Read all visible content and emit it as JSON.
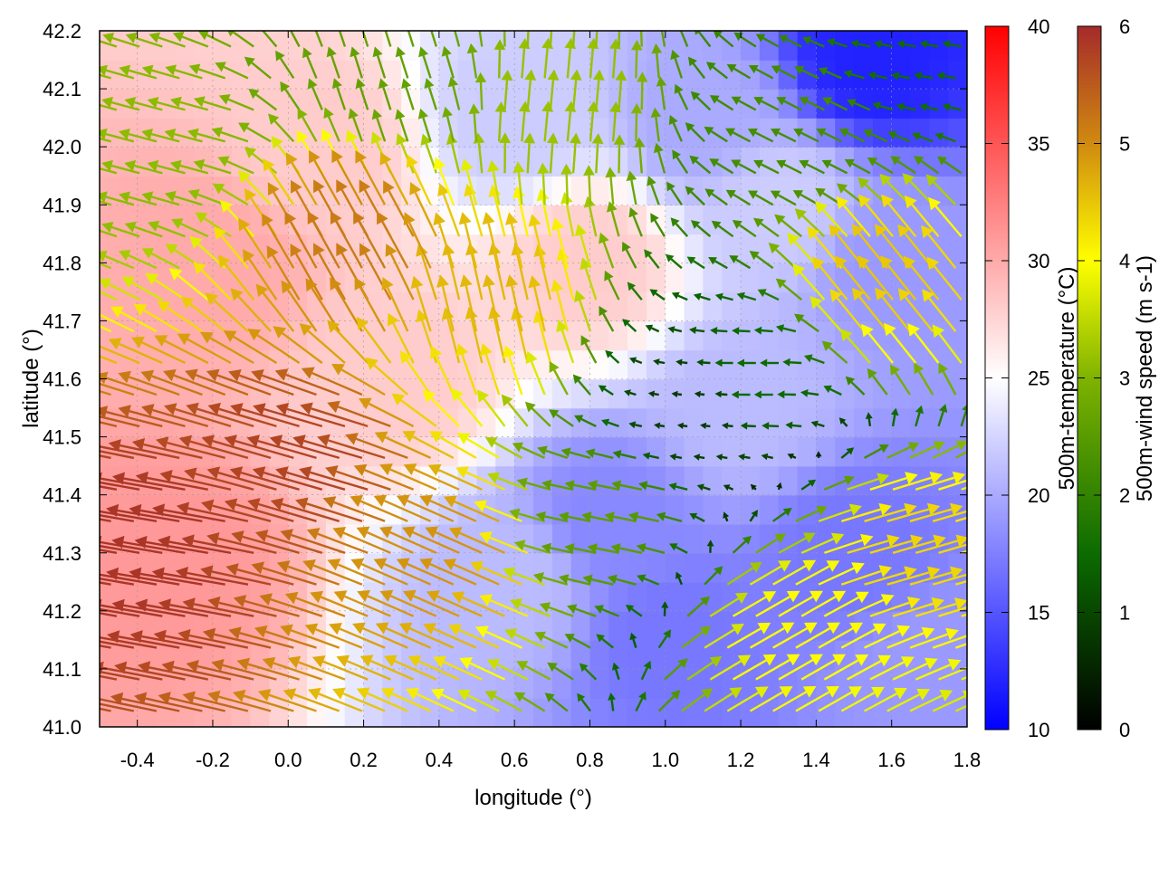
{
  "chart_data": {
    "type": "vector-field-heatmap",
    "xlabel": "longitude (°)",
    "ylabel": "latitude (°)",
    "xlim": [
      -0.5,
      1.8
    ],
    "ylim": [
      41.0,
      42.2
    ],
    "x_ticks": [
      "-0.4",
      "-0.2",
      "0.0",
      "0.2",
      "0.4",
      "0.6",
      "0.8",
      "1.0",
      "1.2",
      "1.4",
      "1.6",
      "1.8"
    ],
    "x_tick_values": [
      -0.4,
      -0.2,
      0.0,
      0.2,
      0.4,
      0.6,
      0.8,
      1.0,
      1.2,
      1.4,
      1.6,
      1.8
    ],
    "y_ticks": [
      "41.0",
      "41.1",
      "41.2",
      "41.3",
      "41.4",
      "41.5",
      "41.6",
      "41.7",
      "41.8",
      "41.9",
      "42.0",
      "42.1",
      "42.2"
    ],
    "y_tick_values": [
      41.0,
      41.1,
      41.2,
      41.3,
      41.4,
      41.5,
      41.6,
      41.7,
      41.8,
      41.9,
      42.0,
      42.1,
      42.2
    ],
    "grid": true,
    "temperature_colorbar": {
      "label": "500m-temperature (°C)",
      "range": [
        10,
        40
      ],
      "ticks": [
        "10",
        "15",
        "20",
        "25",
        "30",
        "35",
        "40"
      ],
      "tick_values": [
        10,
        15,
        20,
        25,
        30,
        35,
        40
      ],
      "colors": [
        "#0000ff",
        "#ffffff",
        "#ff0000"
      ],
      "color_stops": [
        10,
        25,
        40
      ]
    },
    "wind_colorbar": {
      "label": "500m-wind speed (m s-1)",
      "range": [
        0,
        6
      ],
      "ticks": [
        "0",
        "1",
        "2",
        "3",
        "4",
        "5",
        "6"
      ],
      "tick_values": [
        0,
        1,
        2,
        3,
        4,
        5,
        6
      ],
      "colors": [
        "#000000",
        "#0c6b00",
        "#7fb300",
        "#ffff00",
        "#d08a10",
        "#a52a2a"
      ],
      "color_stops": [
        0,
        1.5,
        3,
        4,
        5,
        6
      ]
    },
    "temperature_regions": [
      {
        "lon": -0.3,
        "lat": 41.3,
        "temp": 31
      },
      {
        "lon": -0.2,
        "lat": 41.8,
        "temp": 30
      },
      {
        "lon": 0.1,
        "lat": 42.0,
        "temp": 28
      },
      {
        "lon": 0.3,
        "lat": 41.6,
        "temp": 28
      },
      {
        "lon": 0.8,
        "lat": 41.8,
        "temp": 28
      },
      {
        "lon": 0.6,
        "lat": 41.25,
        "temp": 21
      },
      {
        "lon": 0.85,
        "lat": 41.35,
        "temp": 18
      },
      {
        "lon": 1.0,
        "lat": 41.15,
        "temp": 17
      },
      {
        "lon": 1.2,
        "lat": 41.55,
        "temp": 21
      },
      {
        "lon": 1.5,
        "lat": 41.3,
        "temp": 17
      },
      {
        "lon": 1.55,
        "lat": 42.15,
        "temp": 12
      },
      {
        "lon": 1.6,
        "lat": 41.8,
        "temp": 19
      },
      {
        "lon": 1.7,
        "lat": 41.1,
        "temp": 19
      },
      {
        "lon": 1.1,
        "lat": 42.05,
        "temp": 20
      },
      {
        "lon": 0.6,
        "lat": 42.05,
        "temp": 22
      },
      {
        "lon": 1.3,
        "lat": 41.9,
        "temp": 22
      }
    ],
    "wind_regions": [
      {
        "lon": -0.3,
        "lat": 41.3,
        "u": -5.8,
        "v": 1.0
      },
      {
        "lon": 0.1,
        "lat": 41.45,
        "u": -5.5,
        "v": 1.6
      },
      {
        "lon": 0.45,
        "lat": 41.3,
        "u": -4.5,
        "v": 2.0
      },
      {
        "lon": 0.55,
        "lat": 41.7,
        "u": -1.0,
        "v": 4.5
      },
      {
        "lon": 0.2,
        "lat": 41.8,
        "u": -2.5,
        "v": 4.5
      },
      {
        "lon": -0.3,
        "lat": 42.0,
        "u": -3.0,
        "v": 0.8
      },
      {
        "lon": 0.3,
        "lat": 42.1,
        "u": -0.8,
        "v": 2.5
      },
      {
        "lon": 0.7,
        "lat": 42.05,
        "u": 0.3,
        "v": 3.2
      },
      {
        "lon": 1.1,
        "lat": 41.55,
        "u": -0.8,
        "v": 0.1
      },
      {
        "lon": 1.25,
        "lat": 41.6,
        "u": -1.5,
        "v": 0.0
      },
      {
        "lon": 0.85,
        "lat": 41.35,
        "u": -2.5,
        "v": 0.5
      },
      {
        "lon": 1.3,
        "lat": 41.15,
        "u": 3.5,
        "v": 2.0
      },
      {
        "lon": 1.6,
        "lat": 41.3,
        "u": 4.2,
        "v": 1.2
      },
      {
        "lon": 1.6,
        "lat": 41.75,
        "u": -2.8,
        "v": 3.5
      },
      {
        "lon": 1.4,
        "lat": 42.0,
        "u": -2.0,
        "v": 1.0
      },
      {
        "lon": 1.7,
        "lat": 42.15,
        "u": -1.5,
        "v": 0.3
      }
    ]
  }
}
